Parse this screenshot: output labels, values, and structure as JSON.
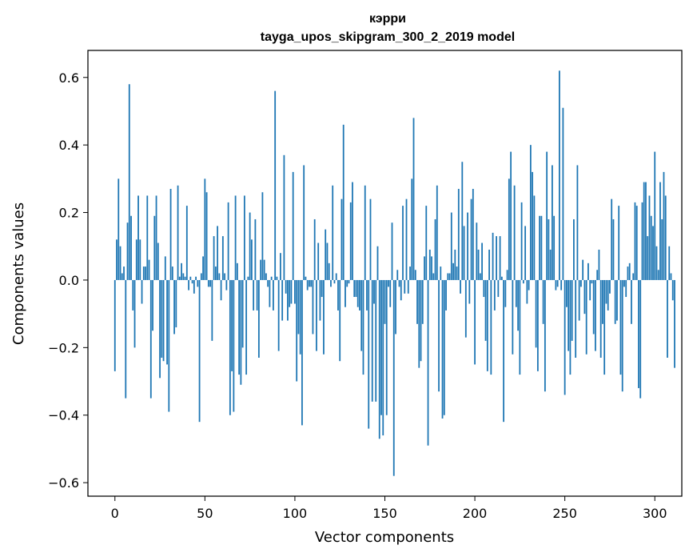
{
  "chart_data": {
    "type": "bar",
    "title_line1": "кэрри",
    "title_line2": "tayga_upos_skipgram_300_2_2019 model",
    "xlabel": "Vector components",
    "ylabel": "Components values",
    "xlim": [
      -15,
      315
    ],
    "ylim": [
      -0.64,
      0.68
    ],
    "xticks": [
      0,
      50,
      100,
      150,
      200,
      250,
      300
    ],
    "yticks": [
      -0.6,
      -0.4,
      -0.2,
      0.0,
      0.2,
      0.4,
      0.6
    ],
    "ytick_labels": [
      "−0.6",
      "−0.4",
      "−0.2",
      "0.0",
      "0.2",
      "0.4",
      "0.6"
    ],
    "bar_color": "#1f77b4",
    "values": [
      -0.27,
      0.12,
      0.3,
      0.1,
      0.02,
      0.04,
      -0.35,
      0.17,
      0.58,
      0.19,
      -0.09,
      -0.2,
      0.12,
      0.25,
      0.12,
      -0.07,
      0.04,
      0.04,
      0.25,
      0.06,
      -0.35,
      -0.15,
      0.19,
      0.25,
      0.11,
      -0.29,
      -0.23,
      -0.24,
      0.07,
      -0.25,
      -0.39,
      0.27,
      0.04,
      -0.16,
      -0.14,
      0.28,
      0.01,
      0.05,
      0.02,
      0.01,
      0.22,
      -0.03,
      0.01,
      -0.01,
      -0.04,
      0.01,
      -0.02,
      -0.42,
      0.02,
      0.07,
      0.3,
      0.26,
      -0.02,
      -0.02,
      -0.18,
      0.13,
      0.04,
      0.16,
      0.02,
      -0.06,
      0.13,
      0.02,
      -0.03,
      0.23,
      -0.4,
      -0.27,
      -0.39,
      0.25,
      0.05,
      -0.28,
      -0.31,
      -0.2,
      0.25,
      -0.28,
      0.01,
      0.2,
      0.12,
      -0.09,
      0.18,
      -0.09,
      -0.23,
      0.06,
      0.26,
      0.06,
      0.02,
      -0.02,
      -0.08,
      0.01,
      -0.09,
      0.56,
      0.01,
      -0.21,
      0.08,
      -0.12,
      0.37,
      -0.04,
      -0.12,
      -0.08,
      -0.07,
      0.32,
      -0.07,
      -0.3,
      -0.16,
      -0.22,
      -0.43,
      0.34,
      0.01,
      -0.03,
      -0.02,
      -0.02,
      -0.16,
      0.18,
      -0.21,
      0.11,
      -0.12,
      -0.05,
      -0.22,
      0.15,
      0.11,
      0.05,
      -0.02,
      0.28,
      -0.01,
      0.02,
      -0.09,
      -0.24,
      0.24,
      0.46,
      -0.08,
      -0.02,
      -0.01,
      0.23,
      0.29,
      -0.05,
      -0.05,
      -0.08,
      -0.09,
      -0.21,
      -0.28,
      0.28,
      -0.09,
      -0.44,
      0.24,
      -0.36,
      -0.07,
      -0.36,
      0.1,
      -0.47,
      -0.4,
      -0.46,
      -0.13,
      -0.4,
      -0.02,
      -0.08,
      0.17,
      -0.58,
      -0.16,
      0.03,
      -0.02,
      -0.06,
      0.22,
      -0.04,
      0.24,
      -0.04,
      0.04,
      0.3,
      0.48,
      0.03,
      -0.13,
      -0.26,
      -0.24,
      -0.13,
      0.07,
      0.22,
      -0.49,
      0.09,
      0.07,
      0.02,
      0.18,
      0.28,
      -0.33,
      0.04,
      -0.41,
      -0.4,
      -0.09,
      0.02,
      0.02,
      0.2,
      0.05,
      0.09,
      0.04,
      0.27,
      -0.04,
      0.35,
      0.16,
      -0.17,
      0.2,
      -0.07,
      0.24,
      0.27,
      -0.25,
      0.17,
      0.09,
      0.02,
      0.11,
      -0.05,
      -0.18,
      -0.27,
      0.09,
      -0.28,
      0.14,
      -0.09,
      0.13,
      -0.05,
      0.13,
      0.01,
      -0.42,
      -0.08,
      0.03,
      0.3,
      0.38,
      -0.22,
      0.28,
      -0.08,
      -0.15,
      -0.28,
      0.23,
      -0.01,
      0.16,
      -0.07,
      -0.03,
      0.4,
      0.32,
      0.25,
      -0.2,
      -0.27,
      0.19,
      0.19,
      -0.13,
      -0.33,
      0.38,
      0.18,
      0.09,
      0.34,
      0.19,
      -0.03,
      -0.02,
      0.62,
      -0.03,
      0.51,
      -0.34,
      -0.08,
      -0.21,
      -0.28,
      -0.18,
      0.18,
      -0.23,
      0.34,
      -0.12,
      -0.02,
      0.06,
      -0.1,
      -0.22,
      0.05,
      -0.06,
      -0.01,
      -0.16,
      -0.21,
      0.03,
      0.09,
      -0.23,
      -0.13,
      -0.28,
      -0.07,
      -0.09,
      -0.04,
      0.24,
      0.18,
      -0.13,
      -0.12,
      0.22,
      -0.28,
      -0.33,
      -0.02,
      -0.05,
      0.04,
      0.05,
      -0.13,
      0.02,
      0.23,
      0.22,
      -0.32,
      -0.35,
      0.23,
      0.29,
      0.29,
      0.13,
      0.25,
      0.19,
      0.16,
      0.38,
      0.1,
      0.03,
      0.29,
      0.18,
      0.32,
      0.25,
      -0.23,
      0.1,
      0.02,
      -0.06,
      -0.26
    ]
  }
}
